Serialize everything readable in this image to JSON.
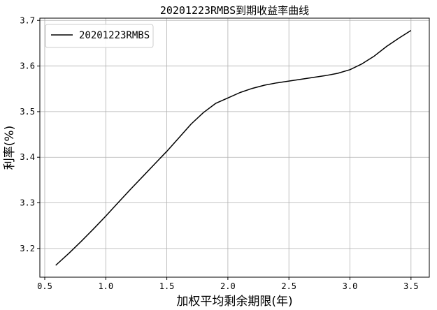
{
  "chart_data": {
    "type": "line",
    "title": "20201223RMBS到期收益率曲线",
    "xlabel": "加权平均剩余期限(年)",
    "ylabel": "利率(%)",
    "xlim": [
      0.46,
      3.65
    ],
    "ylim": [
      3.137,
      3.705
    ],
    "xticks": [
      0.5,
      1.0,
      1.5,
      2.0,
      2.5,
      3.0,
      3.5
    ],
    "xtick_labels": [
      "0.5",
      "1.0",
      "1.5",
      "2.0",
      "2.5",
      "3.0",
      "3.5"
    ],
    "yticks": [
      3.2,
      3.3,
      3.4,
      3.5,
      3.6,
      3.7
    ],
    "ytick_labels": [
      "3.2",
      "3.3",
      "3.4",
      "3.5",
      "3.6",
      "3.7"
    ],
    "grid": true,
    "legend_position": "upper-left",
    "series": [
      {
        "name": "20201223RMBS",
        "color": "#000000",
        "x": [
          0.59,
          0.7,
          0.8,
          0.9,
          1.0,
          1.1,
          1.2,
          1.3,
          1.4,
          1.5,
          1.6,
          1.7,
          1.8,
          1.9,
          2.0,
          2.1,
          2.2,
          2.3,
          2.4,
          2.5,
          2.6,
          2.7,
          2.8,
          2.9,
          3.0,
          3.1,
          3.2,
          3.3,
          3.4,
          3.5
        ],
        "y": [
          3.163,
          3.19,
          3.216,
          3.243,
          3.271,
          3.3,
          3.329,
          3.357,
          3.385,
          3.413,
          3.443,
          3.473,
          3.498,
          3.518,
          3.53,
          3.542,
          3.551,
          3.558,
          3.563,
          3.567,
          3.571,
          3.575,
          3.579,
          3.584,
          3.592,
          3.605,
          3.622,
          3.643,
          3.661,
          3.678
        ]
      }
    ]
  }
}
